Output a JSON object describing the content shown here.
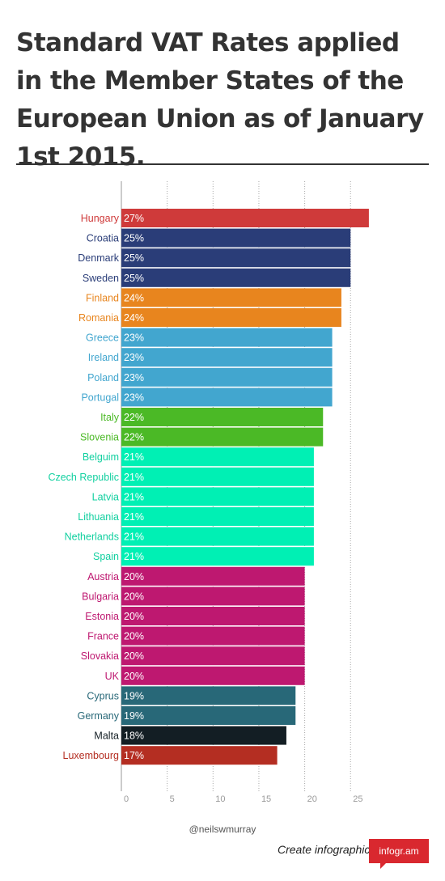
{
  "chart_data": {
    "type": "bar",
    "orientation": "horizontal",
    "title": "Standard VAT Rates applied in the Member States of the European Union as of January 1st 2015.",
    "xlim": [
      0,
      27
    ],
    "x_ticks": [
      0,
      5,
      10,
      15,
      20,
      25
    ],
    "grid": "vertical dotted",
    "value_suffix": "%",
    "categories": [
      "Hungary",
      "Croatia",
      "Denmark",
      "Sweden",
      "Finland",
      "Romania",
      "Greece",
      "Ireland",
      "Poland",
      "Portugal",
      "Italy",
      "Slovenia",
      "Belguim",
      "Czech Republic",
      "Latvia",
      "Lithuania",
      "Netherlands",
      "Spain",
      "Austria",
      "Bulgaria",
      "Estonia",
      "France",
      "Slovakia",
      "UK",
      "Cyprus",
      "Germany",
      "Malta",
      "Luxembourg"
    ],
    "values": [
      27,
      25,
      25,
      25,
      24,
      24,
      23,
      23,
      23,
      23,
      22,
      22,
      21,
      21,
      21,
      21,
      21,
      21,
      20,
      20,
      20,
      20,
      20,
      20,
      19,
      19,
      18,
      17
    ],
    "colors": [
      "#cf3a3a",
      "#2a3d78",
      "#2a3d78",
      "#2a3d78",
      "#e8851e",
      "#e8851e",
      "#42a6cf",
      "#42a6cf",
      "#42a6cf",
      "#42a6cf",
      "#4bb926",
      "#4bb926",
      "#00f0b4",
      "#00f0b4",
      "#00f0b4",
      "#00f0b4",
      "#00f0b4",
      "#00f0b4",
      "#be1870",
      "#be1870",
      "#be1870",
      "#be1870",
      "#be1870",
      "#be1870",
      "#286878",
      "#286878",
      "#131e24",
      "#b42e22"
    ],
    "label_colors": [
      "#cf3a3a",
      "#2a3d78",
      "#2a3d78",
      "#2a3d78",
      "#e8851e",
      "#e8851e",
      "#42a6cf",
      "#42a6cf",
      "#42a6cf",
      "#42a6cf",
      "#4bb926",
      "#4bb926",
      "#12d0a0",
      "#12d0a0",
      "#12d0a0",
      "#12d0a0",
      "#12d0a0",
      "#12d0a0",
      "#be1870",
      "#be1870",
      "#be1870",
      "#be1870",
      "#be1870",
      "#be1870",
      "#286878",
      "#286878",
      "#131e24",
      "#b42e22"
    ]
  },
  "credit": "@neilswmurray",
  "footer": {
    "cta": "Create infographics",
    "badge": "infogr.am"
  }
}
